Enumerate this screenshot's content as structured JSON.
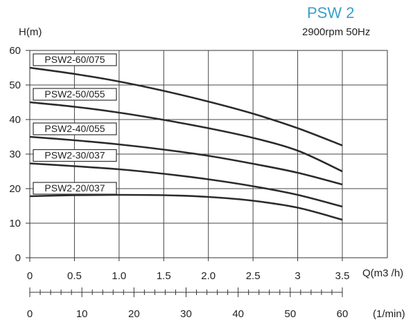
{
  "header": {
    "title": "PSW 2",
    "subtitle": "2900rpm 50Hz"
  },
  "chart_data": {
    "type": "line",
    "ylabel": "H(m)",
    "xlabel": "Q(m3 /h)",
    "x2label": "(1/min)",
    "xlim": [
      0,
      3.5
    ],
    "ylim": [
      0,
      60
    ],
    "x_ticks": [
      "0",
      "0.5",
      "1.0",
      "1.5",
      "2.0",
      "2.5",
      "3",
      "3.5"
    ],
    "x_tick_values": [
      0,
      0.5,
      1.0,
      1.5,
      2.0,
      2.5,
      3.0,
      3.5
    ],
    "y_ticks": [
      "0",
      "10",
      "20",
      "30",
      "40",
      "50",
      "60"
    ],
    "y_tick_values": [
      0,
      10,
      20,
      30,
      40,
      50,
      60
    ],
    "x2_ticks": [
      "0",
      "10",
      "20",
      "30",
      "40",
      "50",
      "60"
    ],
    "x2_tick_values": [
      0,
      10,
      20,
      30,
      40,
      50,
      60
    ],
    "grid": true,
    "series": [
      {
        "name": "PSW2-60/075",
        "x": [
          0,
          0.5,
          1.0,
          1.5,
          2.0,
          2.5,
          3.0,
          3.5
        ],
        "y": [
          55,
          53.2,
          51,
          48.3,
          45.2,
          41.7,
          37.5,
          32.5
        ]
      },
      {
        "name": "PSW2-50/055",
        "x": [
          0,
          0.5,
          1.0,
          1.5,
          2.0,
          2.5,
          3.0,
          3.5
        ],
        "y": [
          45,
          43.7,
          42,
          39.9,
          37.5,
          34.7,
          31,
          25
        ]
      },
      {
        "name": "PSW2-40/055",
        "x": [
          0,
          0.5,
          1.0,
          1.5,
          2.0,
          2.5,
          3.0,
          3.5
        ],
        "y": [
          35,
          34,
          32.8,
          31.3,
          29.5,
          27.2,
          24.6,
          21.2
        ]
      },
      {
        "name": "PSW2-30/037",
        "x": [
          0,
          0.5,
          1.0,
          1.5,
          2.0,
          2.5,
          3.0,
          3.5
        ],
        "y": [
          27.3,
          26.5,
          25.6,
          24.3,
          22.7,
          20.7,
          18.2,
          14.8
        ]
      },
      {
        "name": "PSW2-20/037",
        "x": [
          0,
          0.5,
          1.0,
          1.5,
          2.0,
          2.5,
          3.0,
          3.5
        ],
        "y": [
          17.8,
          18.1,
          18.2,
          18.1,
          17.6,
          16.5,
          14.5,
          11
        ]
      }
    ]
  }
}
